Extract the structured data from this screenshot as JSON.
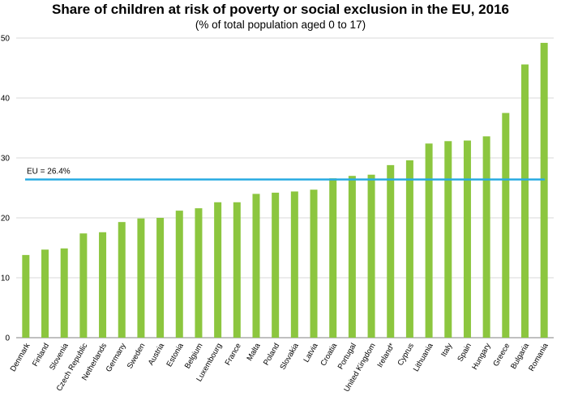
{
  "chart_data": {
    "type": "bar",
    "title": "Share of children at risk of poverty or social exclusion in the EU, 2016",
    "subtitle": "(% of total population aged 0 to 17)",
    "categories": [
      "Denmark",
      "Finland",
      "Slovenia",
      "Czech Republic",
      "Netherlands",
      "Germany",
      "Sweden",
      "Austria",
      "Estonia",
      "Belgium",
      "Luxembourg",
      "France",
      "Malta",
      "Poland",
      "Slovakia",
      "Latvia",
      "Croatia",
      "Portugal",
      "United Kingdom",
      "Ireland*",
      "Cyprus",
      "Lithuania",
      "Italy",
      "Spain",
      "Hungary",
      "Greece",
      "Bulgaria",
      "Romania"
    ],
    "values": [
      13.8,
      14.7,
      14.9,
      17.4,
      17.6,
      19.3,
      19.9,
      20.0,
      21.2,
      21.6,
      22.6,
      22.6,
      24.0,
      24.2,
      24.4,
      24.7,
      26.6,
      27.0,
      27.2,
      28.8,
      29.6,
      32.4,
      32.8,
      32.9,
      33.6,
      37.5,
      45.6,
      49.2
    ],
    "ylim": [
      0,
      50
    ],
    "yticks": [
      0,
      10,
      20,
      30,
      40,
      50
    ],
    "reference_line": {
      "label": "EU = 26.4%",
      "value": 26.4
    },
    "xlabel": "",
    "ylabel": "",
    "bar_color": "#8cc63f",
    "reference_color": "#29abe2",
    "grid_color": "#d9d9d9"
  }
}
